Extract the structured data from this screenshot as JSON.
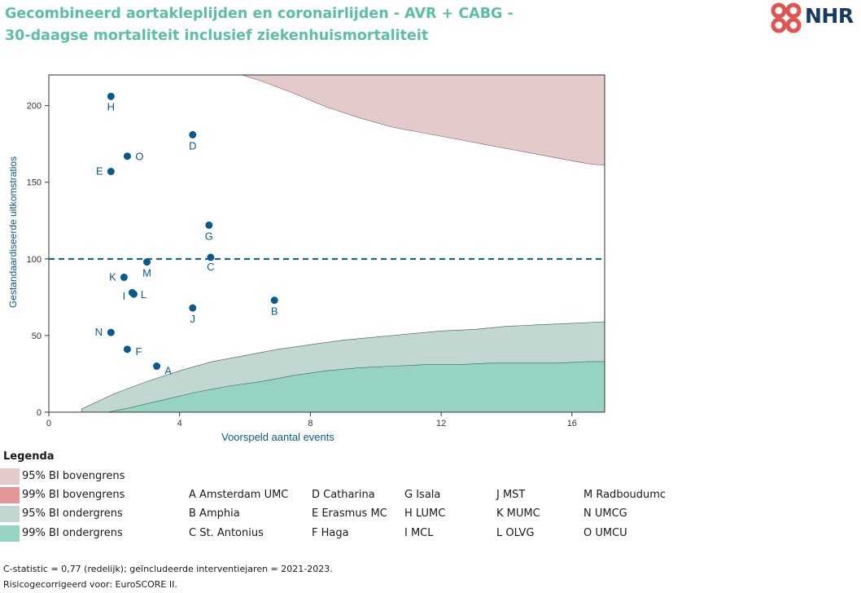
{
  "title_line1": "Gecombineerd aortakleplijden en coronairlijden - AVR + CABG -",
  "title_line2": "30-daagse mortaliteit inclusief ziekenhuismortaliteit",
  "logo_text": "NHR",
  "colors": {
    "title": "#5bbfa3",
    "points": "#0a5a8c",
    "band95_upper": "#e3cbcc",
    "band99_upper": "#e39597",
    "band95_lower": "#c2d7d2",
    "band99_lower": "#96d3c3",
    "reference_line": "#0a5a8c"
  },
  "chart_data": {
    "type": "scatter",
    "xlabel": "Voorspeld aantal events",
    "ylabel": "Gestandaardiseerde uitkomstratios",
    "xlim": [
      0,
      17
    ],
    "ylim": [
      0,
      220
    ],
    "xticks": [
      0,
      4,
      8,
      12,
      16
    ],
    "yticks": [
      0,
      50,
      100,
      150,
      200
    ],
    "reference_line": 100,
    "points": [
      {
        "label": "A",
        "x": 3.3,
        "y": 30
      },
      {
        "label": "B",
        "x": 6.9,
        "y": 73
      },
      {
        "label": "C",
        "x": 4.95,
        "y": 101
      },
      {
        "label": "D",
        "x": 4.4,
        "y": 181
      },
      {
        "label": "E",
        "x": 1.9,
        "y": 157
      },
      {
        "label": "F",
        "x": 2.4,
        "y": 41
      },
      {
        "label": "G",
        "x": 4.9,
        "y": 122
      },
      {
        "label": "H",
        "x": 1.9,
        "y": 206
      },
      {
        "label": "I",
        "x": 2.6,
        "y": 77
      },
      {
        "label": "J",
        "x": 4.4,
        "y": 68
      },
      {
        "label": "K",
        "x": 2.3,
        "y": 88
      },
      {
        "label": "L",
        "x": 2.55,
        "y": 78
      },
      {
        "label": "M",
        "x": 3.0,
        "y": 98
      },
      {
        "label": "N",
        "x": 1.9,
        "y": 52
      },
      {
        "label": "O",
        "x": 2.4,
        "y": 167
      }
    ],
    "bands": {
      "upper95": [
        [
          5.9,
          220
        ],
        [
          6.5,
          216
        ],
        [
          7.5,
          208
        ],
        [
          8.5,
          199
        ],
        [
          9.5,
          192
        ],
        [
          10.5,
          186
        ],
        [
          11.5,
          182
        ],
        [
          12.5,
          178
        ],
        [
          13.5,
          174
        ],
        [
          14.5,
          170
        ],
        [
          15.5,
          166
        ],
        [
          16.5,
          162
        ],
        [
          17,
          161
        ]
      ],
      "lower95": [
        [
          1.0,
          2
        ],
        [
          2.0,
          12
        ],
        [
          3.0,
          20
        ],
        [
          4.0,
          27
        ],
        [
          5.0,
          33
        ],
        [
          6.0,
          37
        ],
        [
          7.0,
          41
        ],
        [
          8.0,
          44
        ],
        [
          9.0,
          47
        ],
        [
          10.0,
          49
        ],
        [
          11.0,
          51
        ],
        [
          12.0,
          53
        ],
        [
          13.0,
          54
        ],
        [
          14.0,
          56
        ],
        [
          15.0,
          57
        ],
        [
          16.0,
          58
        ],
        [
          17.0,
          59
        ]
      ],
      "lower99": [
        [
          1.8,
          0
        ],
        [
          2.5,
          3
        ],
        [
          3.5,
          8
        ],
        [
          4.5,
          13
        ],
        [
          5.5,
          17
        ],
        [
          6.5,
          20
        ],
        [
          7.5,
          24
        ],
        [
          8.5,
          27
        ],
        [
          9.5,
          29
        ],
        [
          10.5,
          30
        ],
        [
          11.5,
          31
        ],
        [
          12.5,
          31
        ],
        [
          13.5,
          32
        ],
        [
          14.5,
          32
        ],
        [
          15.5,
          32
        ],
        [
          16.5,
          33
        ],
        [
          17,
          33
        ]
      ]
    }
  },
  "legend": {
    "title": "Legenda",
    "items": [
      {
        "label": "95% BI bovengrens",
        "color": "#e3cbcc"
      },
      {
        "label": "99% BI bovengrens",
        "color": "#e39597"
      },
      {
        "label": "95% BI ondergrens",
        "color": "#c2d7d2"
      },
      {
        "label": "99% BI ondergrens",
        "color": "#96d3c3"
      }
    ]
  },
  "hospitals": {
    "col1": [
      "A Amsterdam UMC",
      "B Amphia",
      "C St. Antonius"
    ],
    "col2": [
      "D Catharina",
      "E Erasmus MC",
      "F Haga"
    ],
    "col3": [
      "G Isala",
      "H LUMC",
      "I MCL"
    ],
    "col4": [
      "J MST",
      "K MUMC",
      "L OLVG"
    ],
    "col5": [
      "M Radboudumc",
      "N UMCG",
      "O UMCU"
    ]
  },
  "footnotes": [
    "C-statistic =  0,77 (redelijk); geïncludeerde interventiejaren = 2021-2023.",
    "Risicogecorrigeerd voor: EuroSCORE II."
  ]
}
